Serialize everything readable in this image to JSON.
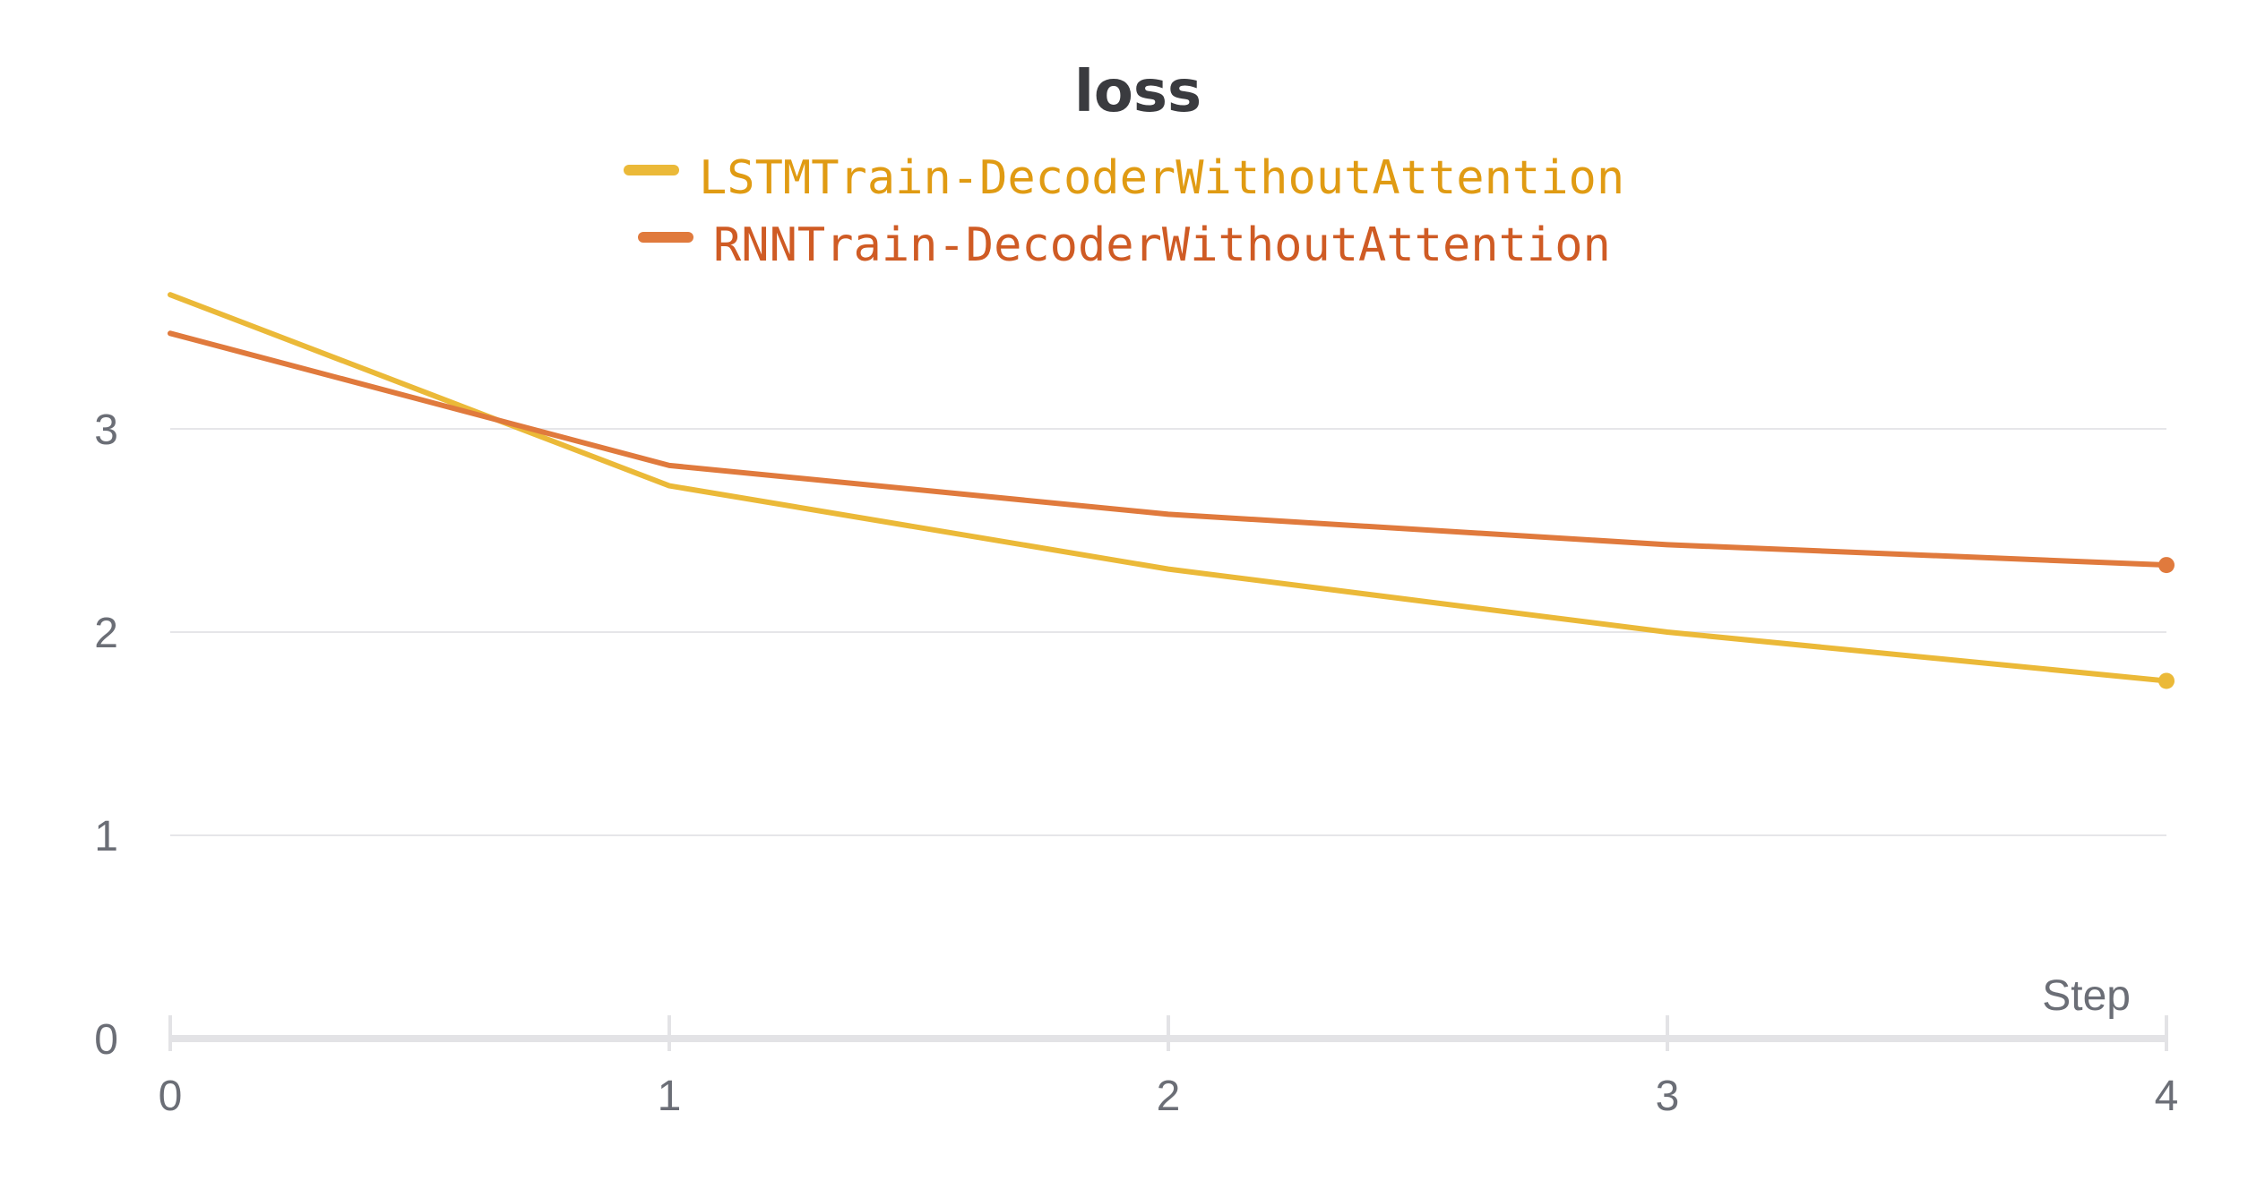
{
  "chart_data": {
    "type": "line",
    "title": "loss",
    "xlabel": "Step",
    "ylabel": "",
    "x": [
      0,
      1,
      2,
      3,
      4
    ],
    "xlim": [
      0,
      4
    ],
    "ylim": [
      0,
      3.9
    ],
    "xticks": [
      "0",
      "1",
      "2",
      "3",
      "4"
    ],
    "yticks": [
      "0",
      "1",
      "2",
      "3"
    ],
    "grid": true,
    "legend": "top-center",
    "series": [
      {
        "name": "LSTMTrain-DecoderWithoutAttention",
        "color": "#ebb938",
        "label_color": "#e09b13",
        "values": [
          3.66,
          2.72,
          2.31,
          2.0,
          1.76
        ]
      },
      {
        "name": "RNNTrain-DecoderWithoutAttention",
        "color": "#e07a3d",
        "label_color": "#cf5b24",
        "values": [
          3.47,
          2.82,
          2.58,
          2.43,
          2.33
        ]
      }
    ]
  }
}
